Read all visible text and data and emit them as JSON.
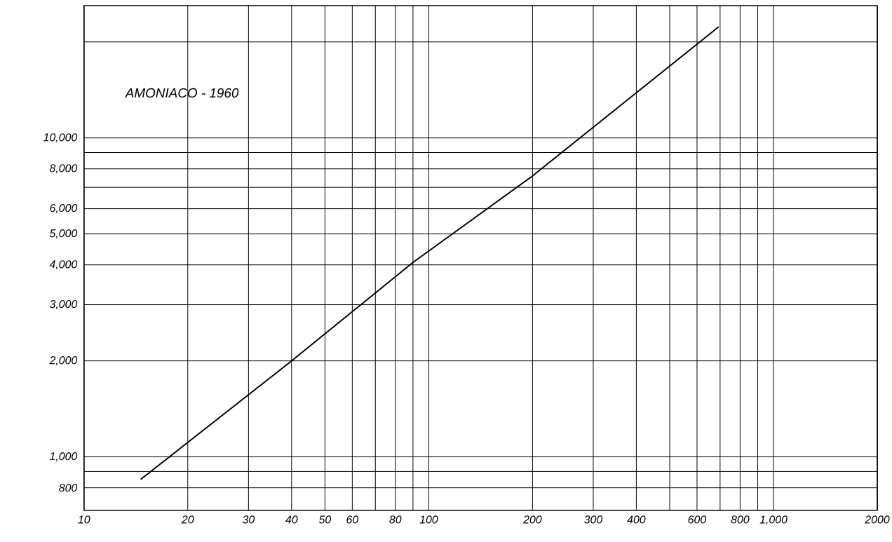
{
  "chart_data": {
    "type": "line",
    "annotations": [
      "AMONIACO - 1960"
    ],
    "log": "xy",
    "grid": true,
    "marker": "none",
    "line_style": "solid",
    "xlim": [
      10,
      2000
    ],
    "ylim": [
      680,
      26000
    ],
    "xticks": [
      10,
      20,
      30,
      40,
      50,
      60,
      {
        "value": 70,
        "label": null
      },
      80,
      {
        "value": 90,
        "label": null
      },
      100,
      200,
      300,
      400,
      {
        "value": 500,
        "label": null
      },
      600,
      {
        "value": 700,
        "label": null
      },
      800,
      {
        "value": 900,
        "label": null
      },
      {
        "value": 1000,
        "label": "1,000"
      },
      2000
    ],
    "yticks": [
      800,
      {
        "value": 900,
        "label": null
      },
      {
        "value": 1000,
        "label": "1,000"
      },
      {
        "value": 2000,
        "label": "2,000"
      },
      {
        "value": 3000,
        "label": "3,000"
      },
      {
        "value": 4000,
        "label": "4,000"
      },
      {
        "value": 5000,
        "label": "5,000"
      },
      {
        "value": 6000,
        "label": "6,000"
      },
      {
        "value": 7000,
        "label": null
      },
      {
        "value": 8000,
        "label": "8,000"
      },
      {
        "value": 9000,
        "label": null
      },
      {
        "value": 10000,
        "label": "10,000"
      },
      {
        "value": 20000,
        "label": null
      }
    ],
    "series": [
      {
        "color": "#000000",
        "x": [
          14.6,
          40,
          90,
          200,
          693
        ],
        "values": [
          850,
          2000,
          4070,
          7600,
          22300
        ]
      }
    ]
  }
}
